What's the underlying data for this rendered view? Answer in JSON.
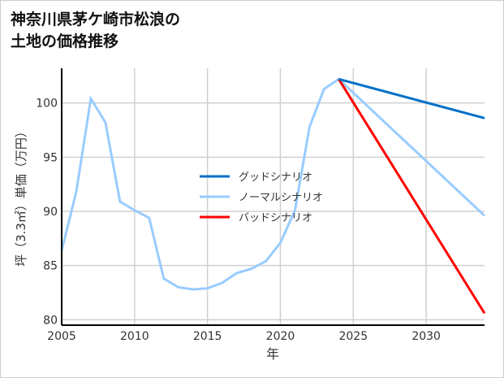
{
  "chart_data": {
    "type": "line",
    "title_lines": [
      "神奈川県茅ケ崎市松浪の",
      "土地の価格推移"
    ],
    "xlabel": "年",
    "ylabel": "坪（3.3㎡）単価（万円）",
    "xlim": [
      2005,
      2034
    ],
    "ylim": [
      79.5,
      103.2
    ],
    "xticks": [
      2005,
      2010,
      2015,
      2020,
      2025,
      2030
    ],
    "yticks": [
      80,
      85,
      90,
      95,
      100
    ],
    "grid": true,
    "legend_position": "center",
    "series": [
      {
        "name": "グッドシナリオ",
        "color": "#0070c8",
        "x": [
          2024,
          2034
        ],
        "y": [
          102.2,
          98.6
        ]
      },
      {
        "name": "ノーマルシナリオ",
        "color": "#99ccff",
        "x": [
          2005,
          2006,
          2007,
          2008,
          2009,
          2010,
          2011,
          2012,
          2013,
          2014,
          2015,
          2016,
          2017,
          2018,
          2019,
          2020,
          2021,
          2022,
          2023,
          2024,
          2034
        ],
        "y": [
          86.4,
          91.8,
          100.4,
          98.2,
          90.9,
          90.1,
          89.4,
          83.8,
          83.0,
          82.8,
          82.9,
          83.4,
          84.3,
          84.7,
          85.4,
          87.1,
          90.1,
          97.8,
          101.3,
          102.2,
          89.6
        ]
      },
      {
        "name": "バッドシナリオ",
        "color": "#ff0000",
        "x": [
          2024,
          2034
        ],
        "y": [
          102.2,
          80.6
        ]
      }
    ]
  }
}
